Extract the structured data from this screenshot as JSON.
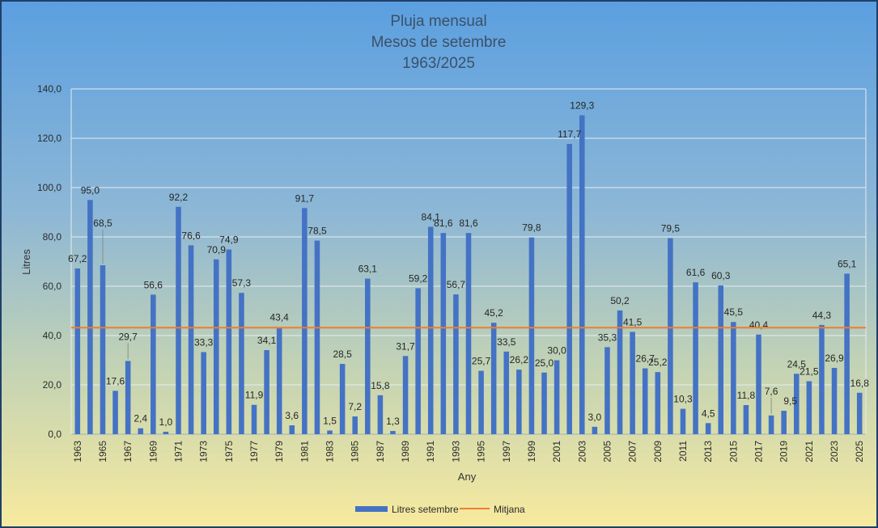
{
  "chart_data": {
    "type": "bar",
    "title": [
      "Pluja mensual",
      "Mesos de setembre",
      "1963/2025"
    ],
    "xlabel": "Any",
    "ylabel": "Litres",
    "ylim": [
      0,
      140
    ],
    "yticks": [
      "0,0",
      "20,0",
      "40,0",
      "60,0",
      "80,0",
      "100,0",
      "120,0",
      "140,0"
    ],
    "grid": true,
    "legend_position": "bottom",
    "categories": [
      1963,
      1964,
      1965,
      1966,
      1967,
      1968,
      1969,
      1970,
      1971,
      1972,
      1973,
      1974,
      1975,
      1976,
      1977,
      1978,
      1979,
      1980,
      1981,
      1982,
      1983,
      1984,
      1985,
      1986,
      1987,
      1988,
      1989,
      1990,
      1991,
      1992,
      1993,
      1994,
      1995,
      1996,
      1997,
      1998,
      1999,
      2000,
      2001,
      2002,
      2003,
      2004,
      2005,
      2006,
      2007,
      2008,
      2009,
      2010,
      2011,
      2012,
      2013,
      2014,
      2015,
      2016,
      2017,
      2018,
      2019,
      2020,
      2021,
      2022,
      2023,
      2024,
      2025
    ],
    "xtick_labels": [
      "1963",
      "1965",
      "1967",
      "1969",
      "1971",
      "1973",
      "1975",
      "1977",
      "1979",
      "1981",
      "1983",
      "1985",
      "1987",
      "1989",
      "1991",
      "1993",
      "1995",
      "1997",
      "1999",
      "2001",
      "2003",
      "2005",
      "2007",
      "2009",
      "2011",
      "2013",
      "2015",
      "2017",
      "2019",
      "2021",
      "2023",
      "2025"
    ],
    "series": [
      {
        "name": "Litres setembre",
        "type": "bar",
        "color": "#4472c4",
        "values": [
          67.2,
          95.0,
          68.5,
          17.6,
          29.7,
          2.4,
          56.6,
          1.0,
          92.2,
          76.6,
          33.3,
          70.9,
          74.9,
          57.3,
          11.9,
          34.1,
          43.4,
          3.6,
          91.7,
          78.5,
          1.5,
          28.5,
          7.2,
          63.1,
          15.8,
          1.3,
          31.7,
          59.2,
          84.1,
          81.6,
          56.7,
          81.6,
          25.7,
          45.2,
          33.5,
          26.2,
          79.8,
          25.0,
          30.0,
          117.7,
          129.3,
          3.0,
          35.3,
          50.2,
          41.5,
          26.7,
          25.2,
          79.5,
          10.3,
          61.6,
          4.5,
          60.3,
          45.5,
          11.8,
          40.4,
          7.6,
          9.5,
          24.5,
          21.5,
          44.3,
          26.9,
          65.1,
          16.8
        ],
        "labels": [
          "67,2",
          "95,0",
          "68,5",
          "17,6",
          "29,7",
          "2,4",
          "56,6",
          "1,0",
          "92,2",
          "76,6",
          "33,3",
          "70,9",
          "74,9",
          "57,3",
          "11,9",
          "34,1",
          "43,4",
          "3,6",
          "91,7",
          "78,5",
          "1,5",
          "28,5",
          "7,2",
          "63,1",
          "15,8",
          "1,3",
          "31,7",
          "59,2",
          "84,1",
          "81,6",
          "56,7",
          "81,6",
          "25,7",
          "45,2",
          "33,5",
          "26,2",
          "79,8",
          "25,0",
          "30,0",
          "117,7",
          "129,3",
          "3,0",
          "35,3",
          "50,2",
          "41,5",
          "26,7",
          "25,2",
          "79,5",
          "10,3",
          "61,6",
          "4,5",
          "60,3",
          "45,5",
          "11,8",
          "40,4",
          "7,6",
          "9,5",
          "24,5",
          "21,5",
          "44,3",
          "26,9",
          "65,1",
          "16,8"
        ]
      },
      {
        "name": "Mitjana",
        "type": "line",
        "color": "#ed7d31",
        "value": 43.2
      }
    ]
  }
}
